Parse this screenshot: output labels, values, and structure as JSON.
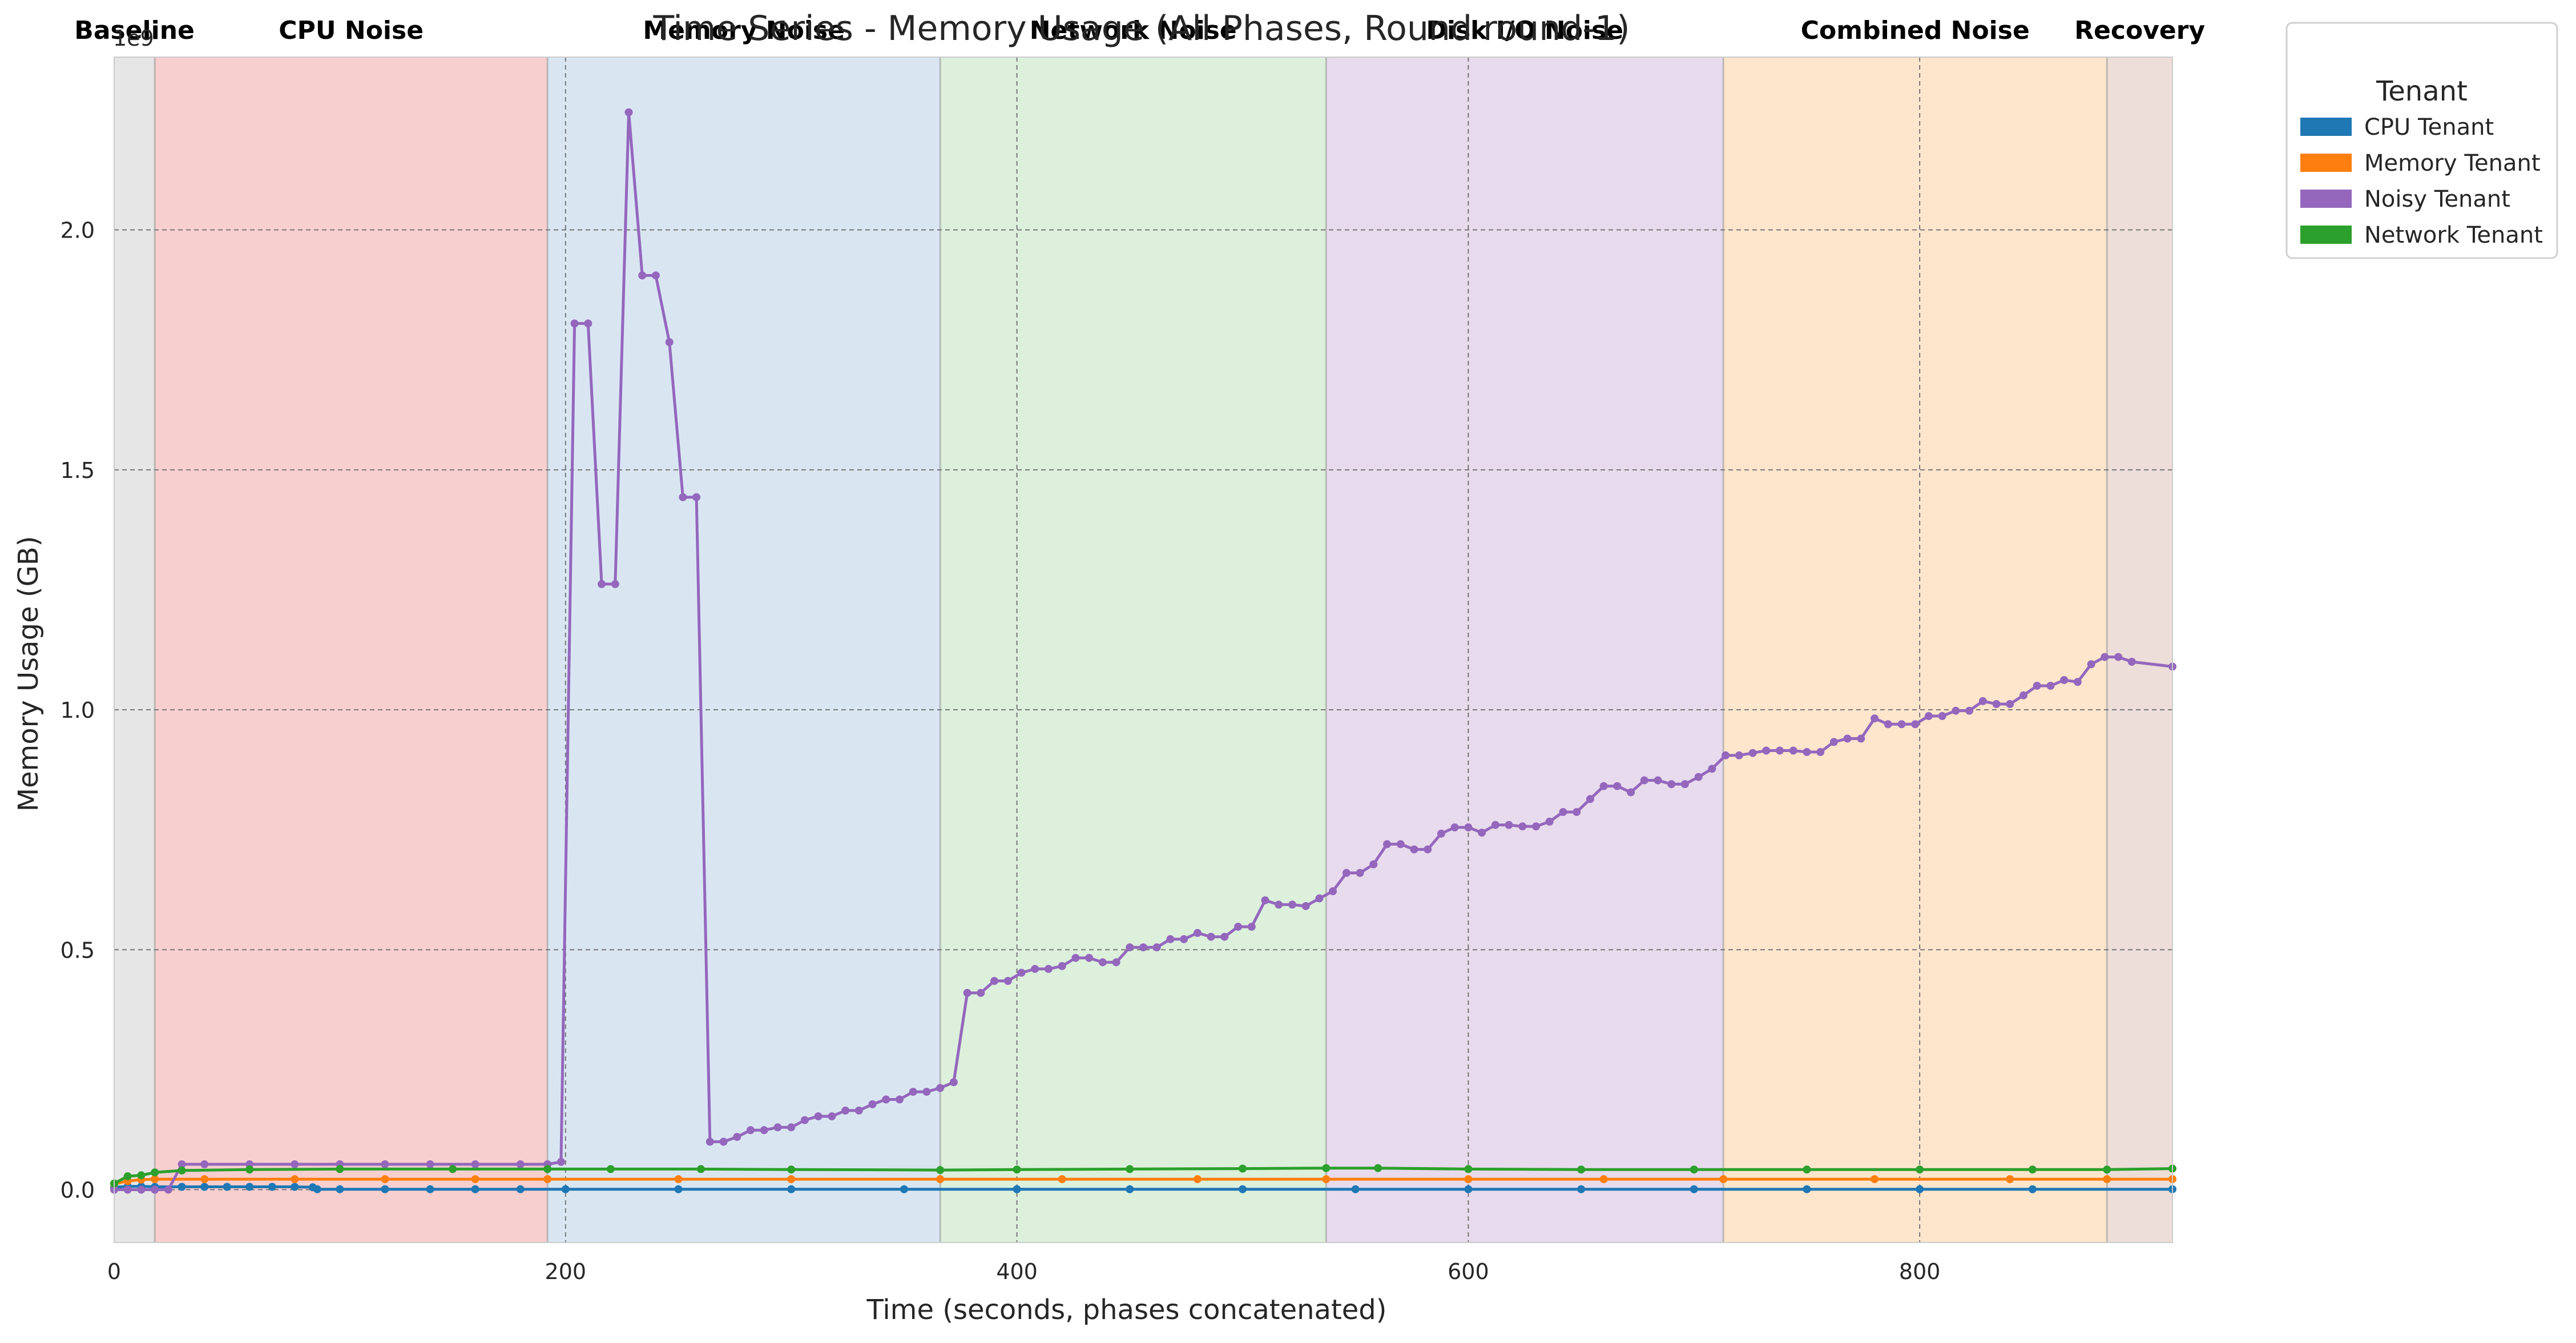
{
  "chart_data": {
    "type": "line",
    "title": "Time Series - Memory Usage (All Phases, Round round-1)",
    "xlabel": "Time (seconds, phases concatenated)",
    "ylabel": "Memory Usage (GB)",
    "y_exponent_label": "1e9",
    "xlim": [
      0,
      912
    ],
    "ylim": [
      -0.11,
      2.36
    ],
    "x_ticks": [
      0,
      200,
      400,
      600,
      800
    ],
    "y_ticks": [
      0.0,
      0.5,
      1.0,
      1.5,
      2.0
    ],
    "y_tick_labels": [
      "0.0",
      "0.5",
      "1.0",
      "1.5",
      "2.0"
    ],
    "grid": true,
    "phases": [
      {
        "name": "Baseline",
        "start": 0,
        "end": 18,
        "color": "#d9d9d9"
      },
      {
        "name": "CPU Noise",
        "start": 18,
        "end": 192,
        "color": "#f4b6b6"
      },
      {
        "name": "Memory Noise",
        "start": 192,
        "end": 366,
        "color": "#c4d8eb"
      },
      {
        "name": "Network Noise",
        "start": 366,
        "end": 537,
        "color": "#c9e8c9"
      },
      {
        "name": "Disk I/O Noise",
        "start": 537,
        "end": 713,
        "color": "#dcc8e4"
      },
      {
        "name": "Combined Noise",
        "start": 713,
        "end": 883,
        "color": "#fdd9b2"
      },
      {
        "name": "Recovery",
        "start": 883,
        "end": 912,
        "color": "#e4cdc4"
      }
    ],
    "legend": {
      "title": "Tenant",
      "placement": "outside-top-right"
    },
    "series": [
      {
        "name": "CPU Tenant",
        "color": "#1f77b4",
        "points": [
          [
            0,
            0.005
          ],
          [
            6,
            0.007
          ],
          [
            12,
            0.007
          ],
          [
            18,
            0.006
          ],
          [
            30,
            0.006
          ],
          [
            40,
            0.006
          ],
          [
            50,
            0.006
          ],
          [
            60,
            0.006
          ],
          [
            70,
            0.006
          ],
          [
            80,
            0.006
          ],
          [
            88,
            0.005
          ],
          [
            90,
            0.001
          ],
          [
            100,
            0.001
          ],
          [
            120,
            0.001
          ],
          [
            140,
            0.001
          ],
          [
            160,
            0.001
          ],
          [
            180,
            0.001
          ],
          [
            200,
            0.001
          ],
          [
            250,
            0.001
          ],
          [
            300,
            0.001
          ],
          [
            350,
            0.001
          ],
          [
            400,
            0.001
          ],
          [
            450,
            0.001
          ],
          [
            500,
            0.001
          ],
          [
            550,
            0.001
          ],
          [
            600,
            0.001
          ],
          [
            650,
            0.001
          ],
          [
            700,
            0.001
          ],
          [
            750,
            0.001
          ],
          [
            800,
            0.001
          ],
          [
            850,
            0.001
          ],
          [
            912,
            0.001
          ]
        ]
      },
      {
        "name": "Memory Tenant",
        "color": "#ff7f0e",
        "points": [
          [
            0,
            0.012
          ],
          [
            6,
            0.018
          ],
          [
            12,
            0.021
          ],
          [
            18,
            0.022
          ],
          [
            40,
            0.022
          ],
          [
            80,
            0.022
          ],
          [
            120,
            0.022
          ],
          [
            160,
            0.022
          ],
          [
            192,
            0.022
          ],
          [
            250,
            0.022
          ],
          [
            300,
            0.022
          ],
          [
            366,
            0.022
          ],
          [
            420,
            0.022
          ],
          [
            480,
            0.022
          ],
          [
            537,
            0.022
          ],
          [
            600,
            0.022
          ],
          [
            660,
            0.022
          ],
          [
            713,
            0.022
          ],
          [
            780,
            0.022
          ],
          [
            840,
            0.022
          ],
          [
            883,
            0.022
          ],
          [
            912,
            0.022
          ]
        ]
      },
      {
        "name": "Noisy Tenant",
        "color": "#9467bd",
        "points": [
          [
            0,
            0.0
          ],
          [
            6,
            0.0
          ],
          [
            12,
            0.0
          ],
          [
            18,
            0.0
          ],
          [
            24,
            0.0
          ],
          [
            30,
            0.053
          ],
          [
            40,
            0.053
          ],
          [
            60,
            0.053
          ],
          [
            80,
            0.053
          ],
          [
            100,
            0.053
          ],
          [
            120,
            0.053
          ],
          [
            140,
            0.053
          ],
          [
            160,
            0.053
          ],
          [
            180,
            0.053
          ],
          [
            192,
            0.053
          ],
          [
            198,
            0.058
          ],
          [
            204,
            1.805
          ],
          [
            210,
            1.805
          ],
          [
            216,
            1.262
          ],
          [
            222,
            1.262
          ],
          [
            228,
            2.245
          ],
          [
            234,
            1.905
          ],
          [
            240,
            1.905
          ],
          [
            246,
            1.766
          ],
          [
            252,
            1.443
          ],
          [
            258,
            1.443
          ],
          [
            264,
            0.1
          ],
          [
            270,
            0.1
          ],
          [
            276,
            0.11
          ],
          [
            282,
            0.124
          ],
          [
            288,
            0.124
          ],
          [
            294,
            0.13
          ],
          [
            300,
            0.13
          ],
          [
            306,
            0.145
          ],
          [
            312,
            0.153
          ],
          [
            318,
            0.153
          ],
          [
            324,
            0.165
          ],
          [
            330,
            0.165
          ],
          [
            336,
            0.178
          ],
          [
            342,
            0.188
          ],
          [
            348,
            0.188
          ],
          [
            354,
            0.204
          ],
          [
            360,
            0.204
          ],
          [
            366,
            0.212
          ],
          [
            372,
            0.224
          ],
          [
            378,
            0.41
          ],
          [
            384,
            0.41
          ],
          [
            390,
            0.435
          ],
          [
            396,
            0.435
          ],
          [
            402,
            0.452
          ],
          [
            408,
            0.46
          ],
          [
            414,
            0.46
          ],
          [
            420,
            0.466
          ],
          [
            426,
            0.483
          ],
          [
            432,
            0.483
          ],
          [
            438,
            0.474
          ],
          [
            444,
            0.474
          ],
          [
            450,
            0.505
          ],
          [
            456,
            0.505
          ],
          [
            462,
            0.505
          ],
          [
            468,
            0.522
          ],
          [
            474,
            0.522
          ],
          [
            480,
            0.535
          ],
          [
            486,
            0.527
          ],
          [
            492,
            0.527
          ],
          [
            498,
            0.548
          ],
          [
            504,
            0.548
          ],
          [
            510,
            0.603
          ],
          [
            516,
            0.594
          ],
          [
            522,
            0.594
          ],
          [
            528,
            0.591
          ],
          [
            534,
            0.607
          ],
          [
            540,
            0.622
          ],
          [
            546,
            0.66
          ],
          [
            552,
            0.66
          ],
          [
            558,
            0.678
          ],
          [
            564,
            0.72
          ],
          [
            570,
            0.72
          ],
          [
            576,
            0.709
          ],
          [
            582,
            0.709
          ],
          [
            588,
            0.742
          ],
          [
            594,
            0.755
          ],
          [
            600,
            0.755
          ],
          [
            606,
            0.744
          ],
          [
            612,
            0.76
          ],
          [
            618,
            0.76
          ],
          [
            624,
            0.757
          ],
          [
            630,
            0.757
          ],
          [
            636,
            0.767
          ],
          [
            642,
            0.787
          ],
          [
            648,
            0.787
          ],
          [
            654,
            0.814
          ],
          [
            660,
            0.841
          ],
          [
            666,
            0.841
          ],
          [
            672,
            0.828
          ],
          [
            678,
            0.853
          ],
          [
            684,
            0.853
          ],
          [
            690,
            0.845
          ],
          [
            696,
            0.845
          ],
          [
            702,
            0.86
          ],
          [
            708,
            0.877
          ],
          [
            714,
            0.905
          ],
          [
            720,
            0.905
          ],
          [
            726,
            0.91
          ],
          [
            732,
            0.915
          ],
          [
            738,
            0.915
          ],
          [
            744,
            0.915
          ],
          [
            750,
            0.912
          ],
          [
            756,
            0.912
          ],
          [
            762,
            0.933
          ],
          [
            768,
            0.94
          ],
          [
            774,
            0.94
          ],
          [
            780,
            0.982
          ],
          [
            786,
            0.97
          ],
          [
            792,
            0.97
          ],
          [
            798,
            0.97
          ],
          [
            804,
            0.987
          ],
          [
            810,
            0.987
          ],
          [
            816,
            0.998
          ],
          [
            822,
            0.998
          ],
          [
            828,
            1.018
          ],
          [
            834,
            1.012
          ],
          [
            840,
            1.012
          ],
          [
            846,
            1.03
          ],
          [
            852,
            1.05
          ],
          [
            858,
            1.05
          ],
          [
            864,
            1.062
          ],
          [
            870,
            1.058
          ],
          [
            876,
            1.095
          ],
          [
            882,
            1.11
          ],
          [
            888,
            1.11
          ],
          [
            894,
            1.1
          ],
          [
            912,
            1.09
          ]
        ]
      },
      {
        "name": "Network Tenant",
        "color": "#2ca02c",
        "points": [
          [
            0,
            0.013
          ],
          [
            6,
            0.028
          ],
          [
            12,
            0.03
          ],
          [
            18,
            0.036
          ],
          [
            30,
            0.04
          ],
          [
            60,
            0.042
          ],
          [
            100,
            0.043
          ],
          [
            150,
            0.043
          ],
          [
            192,
            0.043
          ],
          [
            220,
            0.043
          ],
          [
            260,
            0.043
          ],
          [
            300,
            0.042
          ],
          [
            366,
            0.041
          ],
          [
            400,
            0.042
          ],
          [
            450,
            0.043
          ],
          [
            500,
            0.044
          ],
          [
            537,
            0.045
          ],
          [
            560,
            0.045
          ],
          [
            600,
            0.043
          ],
          [
            650,
            0.042
          ],
          [
            700,
            0.042
          ],
          [
            750,
            0.042
          ],
          [
            800,
            0.042
          ],
          [
            850,
            0.042
          ],
          [
            883,
            0.042
          ],
          [
            912,
            0.044
          ]
        ]
      }
    ]
  }
}
